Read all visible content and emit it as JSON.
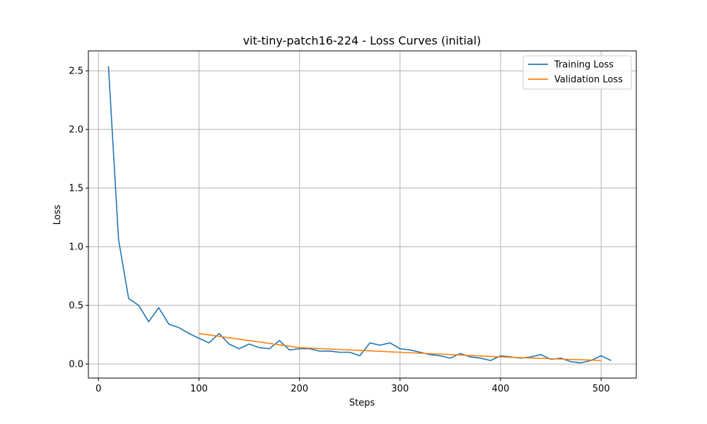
{
  "chart_data": {
    "type": "line",
    "title": "vit-tiny-patch16-224 - Loss Curves (initial)",
    "xlabel": "Steps",
    "ylabel": "Loss",
    "xlim": [
      -10,
      535
    ],
    "ylim": [
      -0.12,
      2.67
    ],
    "xticks": [
      0,
      100,
      200,
      300,
      400,
      500
    ],
    "yticks": [
      0.0,
      0.5,
      1.0,
      1.5,
      2.0,
      2.5
    ],
    "xtick_labels": [
      "0",
      "100",
      "200",
      "300",
      "400",
      "500"
    ],
    "ytick_labels": [
      "0.0",
      "0.5",
      "1.0",
      "1.5",
      "2.0",
      "2.5"
    ],
    "grid": true,
    "legend_position": "top-right",
    "series": [
      {
        "name": "Training Loss",
        "color": "#1f77b4",
        "x": [
          10,
          20,
          30,
          40,
          50,
          60,
          70,
          80,
          90,
          100,
          110,
          120,
          130,
          140,
          150,
          160,
          170,
          180,
          190,
          200,
          210,
          220,
          230,
          240,
          250,
          260,
          270,
          280,
          290,
          300,
          310,
          320,
          330,
          340,
          350,
          360,
          370,
          380,
          390,
          400,
          410,
          420,
          430,
          440,
          450,
          460,
          470,
          480,
          490,
          500,
          510
        ],
        "y": [
          2.54,
          1.06,
          0.56,
          0.5,
          0.36,
          0.48,
          0.34,
          0.31,
          0.26,
          0.22,
          0.18,
          0.26,
          0.17,
          0.13,
          0.17,
          0.14,
          0.13,
          0.2,
          0.12,
          0.13,
          0.13,
          0.11,
          0.11,
          0.1,
          0.1,
          0.07,
          0.18,
          0.16,
          0.18,
          0.13,
          0.12,
          0.1,
          0.08,
          0.07,
          0.05,
          0.09,
          0.06,
          0.05,
          0.03,
          0.07,
          0.06,
          0.05,
          0.06,
          0.08,
          0.04,
          0.05,
          0.02,
          0.01,
          0.03,
          0.07,
          0.03
        ]
      },
      {
        "name": "Validation Loss",
        "color": "#ff7f0e",
        "x": [
          100,
          200,
          300,
          400,
          500
        ],
        "y": [
          0.26,
          0.14,
          0.1,
          0.06,
          0.03
        ]
      }
    ]
  }
}
